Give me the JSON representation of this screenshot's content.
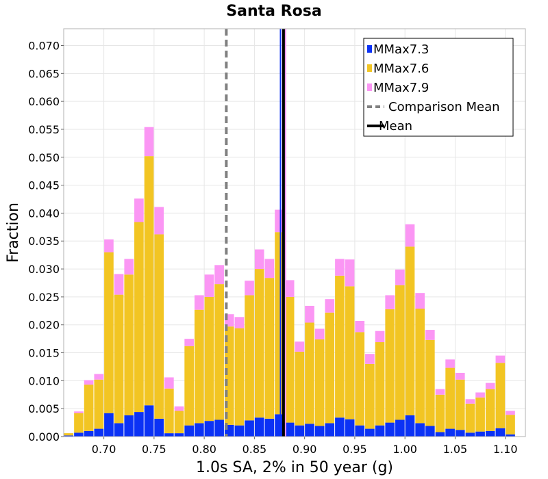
{
  "chart_data": {
    "type": "bar",
    "stacked": true,
    "title": "Santa Rosa",
    "xlabel": "1.0s SA, 2% in 50 year (g)",
    "ylabel": "Fraction",
    "xlim": [
      0.66,
      1.12
    ],
    "ylim": [
      0,
      0.073
    ],
    "bin_width": 0.01,
    "x_ticks": [
      0.7,
      0.75,
      0.8,
      0.85,
      0.9,
      0.95,
      1.0,
      1.05,
      1.1
    ],
    "x_tick_labels": [
      "0.70",
      "0.75",
      "0.80",
      "0.85",
      "0.90",
      "0.95",
      "1.00",
      "1.05",
      "1.10"
    ],
    "y_ticks": [
      0,
      0.005,
      0.01,
      0.015,
      0.02,
      0.025,
      0.03,
      0.035,
      0.04,
      0.045,
      0.05,
      0.055,
      0.06,
      0.065,
      0.07
    ],
    "y_tick_labels": [
      "0.000",
      "0.005",
      "0.010",
      "0.015",
      "0.020",
      "0.025",
      "0.030",
      "0.035",
      "0.040",
      "0.045",
      "0.050",
      "0.055",
      "0.060",
      "0.065",
      "0.070"
    ],
    "grid": true,
    "legend_position": "top-right",
    "x": [
      0.665,
      0.675,
      0.685,
      0.695,
      0.705,
      0.715,
      0.725,
      0.735,
      0.745,
      0.755,
      0.765,
      0.775,
      0.785,
      0.795,
      0.805,
      0.815,
      0.825,
      0.835,
      0.845,
      0.855,
      0.865,
      0.875,
      0.885,
      0.895,
      0.905,
      0.915,
      0.925,
      0.935,
      0.945,
      0.955,
      0.965,
      0.975,
      0.985,
      0.995,
      1.005,
      1.015,
      1.025,
      1.035,
      1.045,
      1.055,
      1.065,
      1.075,
      1.085,
      1.095,
      1.105
    ],
    "series": [
      {
        "name": "MMax7.3",
        "color": "#0b32f5",
        "values": [
          0.0002,
          0.0007,
          0.001,
          0.0014,
          0.0042,
          0.0024,
          0.0038,
          0.0044,
          0.0056,
          0.0032,
          0.0006,
          0.0006,
          0.002,
          0.0024,
          0.0028,
          0.003,
          0.0021,
          0.002,
          0.0029,
          0.0034,
          0.0032,
          0.004,
          0.0025,
          0.002,
          0.0023,
          0.0019,
          0.0024,
          0.0034,
          0.0031,
          0.002,
          0.0014,
          0.002,
          0.0025,
          0.003,
          0.0038,
          0.0024,
          0.0019,
          0.0008,
          0.0014,
          0.0012,
          0.0007,
          0.0009,
          0.001,
          0.0015,
          0.0004
        ]
      },
      {
        "name": "MMax7.6",
        "color": "#f2c523",
        "values": [
          0.0004,
          0.0035,
          0.0083,
          0.0088,
          0.0288,
          0.023,
          0.0252,
          0.034,
          0.0446,
          0.033,
          0.008,
          0.004,
          0.0142,
          0.0203,
          0.0222,
          0.0243,
          0.0176,
          0.0174,
          0.0224,
          0.0266,
          0.0252,
          0.0326,
          0.0225,
          0.0132,
          0.0181,
          0.0155,
          0.0198,
          0.0254,
          0.0238,
          0.0167,
          0.0116,
          0.0149,
          0.0203,
          0.0241,
          0.0302,
          0.0205,
          0.0154,
          0.0067,
          0.0109,
          0.009,
          0.0052,
          0.0061,
          0.0075,
          0.0117,
          0.0035
        ]
      },
      {
        "name": "MMax7.9",
        "color": "#fb96f4",
        "values": [
          0,
          0.0003,
          0.0008,
          0.001,
          0.0023,
          0.0037,
          0.0028,
          0.0042,
          0.0052,
          0.0049,
          0.002,
          0.0008,
          0.0013,
          0.0026,
          0.004,
          0.0034,
          0.0022,
          0.002,
          0.0026,
          0.0035,
          0.0034,
          0.004,
          0.003,
          0.0018,
          0.003,
          0.0019,
          0.0024,
          0.003,
          0.0048,
          0.002,
          0.0018,
          0.002,
          0.0025,
          0.0028,
          0.004,
          0.0028,
          0.0018,
          0.001,
          0.0015,
          0.0012,
          0.0008,
          0.0009,
          0.0011,
          0.0013,
          0.0007
        ]
      }
    ],
    "lines": [
      {
        "name": "Comparison Mean",
        "x": 0.822,
        "color": "#808080",
        "style": "dashed"
      },
      {
        "name": "Mean",
        "x": 0.879,
        "color": "#000000",
        "style": "solid"
      }
    ],
    "extra_lines": [
      {
        "x": 0.876,
        "color": "#0b32f5"
      },
      {
        "x": 0.881,
        "color": "#fb96f4"
      }
    ]
  }
}
